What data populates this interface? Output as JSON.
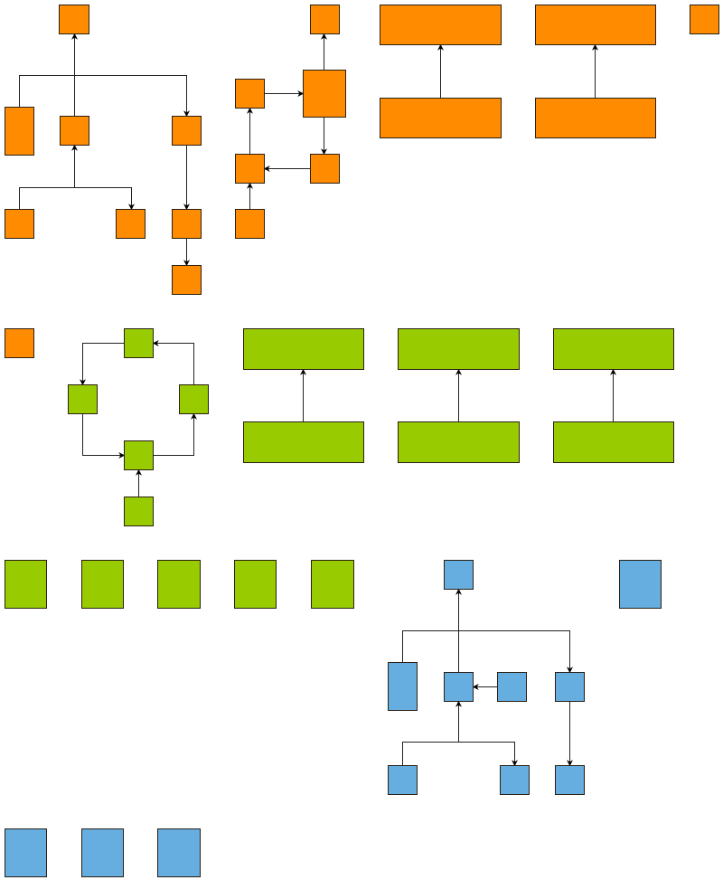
{
  "colors": {
    "orange": "#FF8C00",
    "green": "#99CC00",
    "blue": "#66AEE0",
    "border": "#2a1f14",
    "edge": "#222222"
  }
}
